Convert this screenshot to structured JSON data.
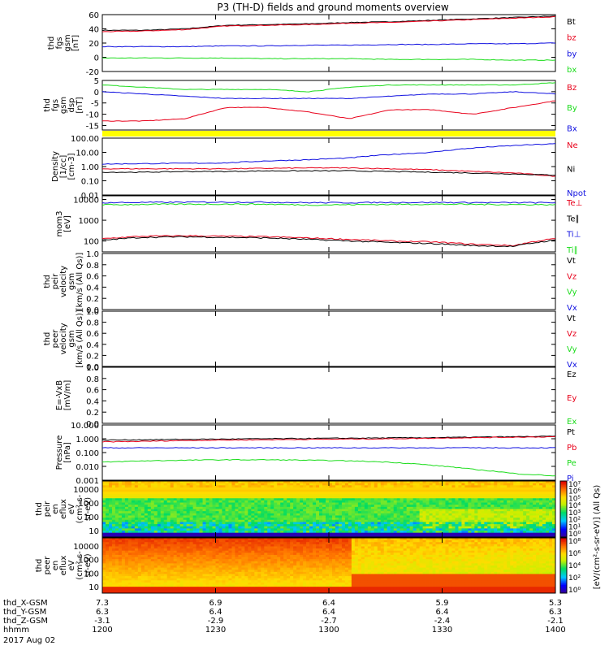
{
  "title": "P3 (TH-D) fields and ground moments overview",
  "colors": {
    "black": "#000000",
    "red": "#e8001a",
    "green": "#1adc1a",
    "blue": "#1010e0",
    "yellow": "#ffff00"
  },
  "chart_data": [
    {
      "type": "line",
      "id": "fgs_mag",
      "ylabel": [
        "thd",
        "fgs",
        "gsm",
        "[nT]"
      ],
      "ylim": [
        -20,
        60
      ],
      "yticks": [
        60,
        40,
        20,
        0,
        -20
      ],
      "series": [
        {
          "name": "Bt",
          "color": "black",
          "values": [
            38,
            38,
            40,
            45,
            46,
            47,
            49,
            50,
            52,
            54,
            56,
            58
          ]
        },
        {
          "name": "bz",
          "color": "red",
          "values": [
            36,
            37,
            39,
            44,
            45,
            46,
            48,
            49,
            51,
            53,
            55,
            57
          ]
        },
        {
          "name": "by",
          "color": "blue",
          "values": [
            15,
            15,
            15,
            16,
            16,
            17,
            17,
            18,
            18,
            19,
            19,
            20
          ]
        },
        {
          "name": "bx",
          "color": "green",
          "values": [
            -1,
            -1,
            -1,
            -1,
            -2,
            -2,
            -2,
            -3,
            -3,
            -3,
            -4,
            -4
          ]
        }
      ]
    },
    {
      "type": "line",
      "id": "fgs_comp",
      "ylabel": [
        "thd",
        "fgs",
        "gsm",
        "dsp",
        "[nT]"
      ],
      "ylim": [
        -17,
        5
      ],
      "yticks": [
        5,
        0,
        -5,
        -10,
        -15
      ],
      "series": [
        {
          "name": "Bz",
          "color": "red",
          "values": [
            -13,
            -13,
            -12,
            -7,
            -7,
            -9,
            -12,
            -8,
            -8,
            -10,
            -7,
            -4
          ]
        },
        {
          "name": "By",
          "color": "green",
          "values": [
            3,
            2,
            1,
            1,
            1,
            0,
            2,
            3,
            3,
            3,
            3,
            4
          ]
        },
        {
          "name": "Bx",
          "color": "blue",
          "values": [
            0,
            -1,
            -2,
            -3,
            -3,
            -3,
            -3,
            -2,
            -1,
            -1,
            0,
            -1
          ]
        }
      ]
    },
    {
      "type": "line",
      "id": "density",
      "ylabel": [
        "Density",
        "[1/cc]",
        "[cm-3]"
      ],
      "ylim": [
        0.01,
        100
      ],
      "yscale": "log",
      "yticks": [
        "100.00",
        "10.00",
        "1.00",
        "0.10",
        "0.01"
      ],
      "series": [
        {
          "name": "Ne",
          "color": "red",
          "values": [
            0.7,
            0.7,
            0.7,
            0.7,
            0.75,
            0.8,
            0.8,
            0.7,
            0.6,
            0.45,
            0.35,
            0.2
          ]
        },
        {
          "name": "Ni",
          "color": "black",
          "values": [
            0.4,
            0.4,
            0.45,
            0.45,
            0.5,
            0.5,
            0.5,
            0.45,
            0.4,
            0.35,
            0.3,
            0.25
          ]
        },
        {
          "name": "Npot",
          "color": "blue",
          "values": [
            1.5,
            1.6,
            1.7,
            1.8,
            2.5,
            3,
            4,
            7,
            10,
            20,
            30,
            40
          ]
        }
      ]
    },
    {
      "type": "line",
      "id": "temperature",
      "ylabel": [
        "mom3",
        "[eV]"
      ],
      "ylim": [
        30,
        15000
      ],
      "yscale": "log",
      "yticks": [
        "10000",
        "1000",
        "100"
      ],
      "series": [
        {
          "name": "Te⊥",
          "color": "red",
          "values": [
            130,
            170,
            180,
            170,
            160,
            140,
            120,
            100,
            90,
            70,
            60,
            130
          ]
        },
        {
          "name": "Te∥",
          "color": "black",
          "values": [
            110,
            150,
            160,
            150,
            140,
            120,
            100,
            85,
            75,
            60,
            55,
            110
          ]
        },
        {
          "name": "Ti⊥",
          "color": "blue",
          "values": [
            7000,
            7200,
            7400,
            7500,
            7400,
            7000,
            7000,
            7200,
            7200,
            7100,
            7000,
            7000
          ]
        },
        {
          "name": "Ti∥",
          "color": "green",
          "values": [
            5500,
            5800,
            5900,
            6000,
            5900,
            5400,
            5600,
            5800,
            5900,
            5800,
            5700,
            5600
          ]
        }
      ]
    },
    {
      "type": "line",
      "id": "peir_velocity",
      "ylabel": [
        "thd",
        "peir",
        "velocity",
        "gsm",
        "[km/s (All Qs)]"
      ],
      "ylim": [
        0,
        1
      ],
      "yticks": [
        "1.0",
        "0.8",
        "0.6",
        "0.4",
        "0.2",
        "0.0"
      ],
      "legend": [
        "Vt",
        "Vz",
        "Vy",
        "Vx"
      ],
      "series": []
    },
    {
      "type": "line",
      "id": "peer_velocity",
      "ylabel": [
        "thd",
        "peer",
        "velocity",
        "gsm",
        "[km/s (All Qs)]"
      ],
      "ylim": [
        0,
        1
      ],
      "yticks": [
        "1.0",
        "0.8",
        "0.6",
        "0.4",
        "0.2",
        "0.0"
      ],
      "legend": [
        "Vt",
        "Vz",
        "Vy",
        "Vx"
      ],
      "series": []
    },
    {
      "type": "line",
      "id": "efield",
      "ylabel": [
        "E=-VxB",
        "[mV/m]"
      ],
      "ylim": [
        0,
        1
      ],
      "yticks": [
        "1.0",
        "0.8",
        "0.6",
        "0.4",
        "0.2",
        "0.0"
      ],
      "legend": [
        "Ez",
        "Ey",
        "Ex"
      ],
      "series": []
    },
    {
      "type": "line",
      "id": "pressure",
      "ylabel": [
        "Pressure",
        "[nPa]"
      ],
      "ylim": [
        0.001,
        10
      ],
      "yscale": "log",
      "yticks": [
        "10.000",
        "1.000",
        "0.100",
        "0.010",
        "0.001"
      ],
      "series": [
        {
          "name": "Pt",
          "color": "black",
          "values": [
            0.8,
            0.85,
            0.9,
            0.95,
            1.0,
            1.05,
            1.1,
            1.15,
            1.2,
            1.3,
            1.4,
            1.5
          ]
        },
        {
          "name": "Pb",
          "color": "red",
          "values": [
            0.6,
            0.65,
            0.75,
            0.8,
            0.85,
            0.9,
            0.95,
            1.0,
            1.1,
            1.2,
            1.3,
            1.4
          ]
        },
        {
          "name": "Pe",
          "color": "green",
          "values": [
            0.02,
            0.025,
            0.028,
            0.03,
            0.03,
            0.028,
            0.025,
            0.02,
            0.012,
            0.006,
            0.003,
            0.002
          ]
        },
        {
          "name": "Pi",
          "color": "blue",
          "values": [
            0.22,
            0.22,
            0.22,
            0.22,
            0.22,
            0.22,
            0.22,
            0.22,
            0.22,
            0.22,
            0.22,
            0.22
          ]
        }
      ]
    },
    {
      "type": "heatmap",
      "id": "peir_en_eflux",
      "ylabel": [
        "thd",
        "peir",
        "en",
        "eflux",
        "eV",
        "(cm²-s-",
        "sr-eV)"
      ],
      "yticks": [
        "10000",
        "1000",
        "100",
        "10"
      ]
    },
    {
      "type": "heatmap",
      "id": "peer_en_eflux",
      "ylabel": [
        "thd",
        "peer",
        "en",
        "eflux",
        "eV",
        "(cm²-s-",
        "sr-eV)"
      ],
      "yticks": [
        "10000",
        "1000",
        "100",
        "10"
      ]
    }
  ],
  "colorbars": [
    {
      "ticks": [
        "10⁷",
        "10⁶",
        "10⁵",
        "10⁴",
        "10³",
        "10²",
        "10¹",
        "10⁰"
      ],
      "label": "[eV/(cm²-s-sr-eV)] (All Qs)"
    },
    {
      "ticks": [
        "10⁸",
        "10⁶",
        "10⁴",
        "10²",
        "10⁰"
      ],
      "label": "[eV/(cm²-s-sr-eV)] (All Qs)"
    }
  ],
  "x_axis": {
    "rows": [
      {
        "label": "thd_X-GSM",
        "values": [
          "7.3",
          "6.9",
          "6.4",
          "5.9",
          "5.3"
        ]
      },
      {
        "label": "thd_Y-GSM",
        "values": [
          "6.3",
          "6.4",
          "6.4",
          "6.4",
          "6.3"
        ]
      },
      {
        "label": "thd_Z-GSM",
        "values": [
          "-3.1",
          "-2.9",
          "-2.7",
          "-2.4",
          "-2.1"
        ]
      },
      {
        "label": "hhmm",
        "values": [
          "1200",
          "1230",
          "1300",
          "1330",
          "1400"
        ]
      }
    ],
    "date": "2017 Aug 02"
  }
}
